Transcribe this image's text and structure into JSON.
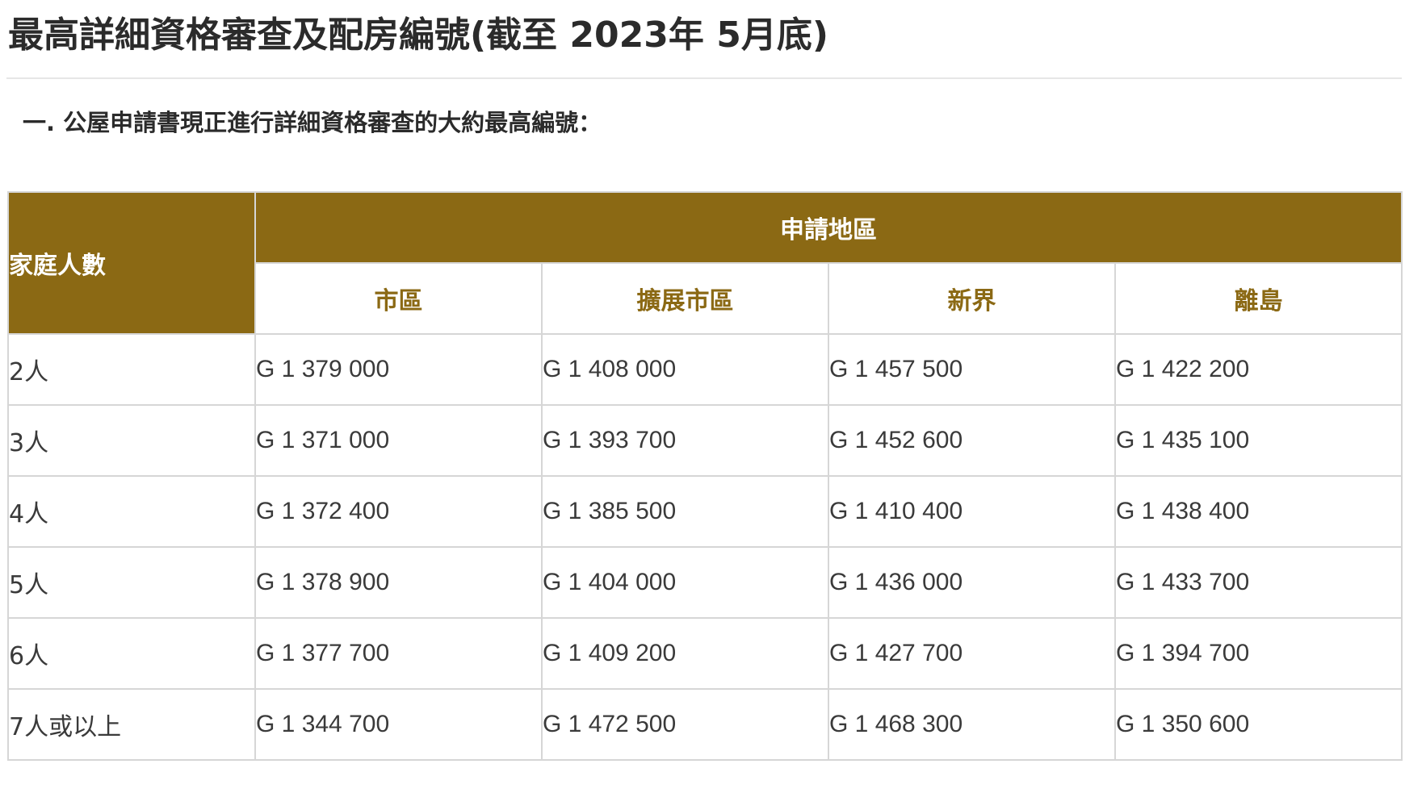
{
  "page": {
    "title": "最高詳細資格審查及配房編號(截至 2023年 5月底)",
    "section_heading": "一. 公屋申請書現正進行詳細資格審查的大約最高編號："
  },
  "table": {
    "row_header": "家庭人數",
    "group_header": "申請地區",
    "columns": [
      "市區",
      "擴展市區",
      "新界",
      "離島"
    ],
    "rows": [
      {
        "label": "2人",
        "values": [
          "G 1 379 000",
          "G 1 408 000",
          "G 1 457 500",
          "G 1 422 200"
        ]
      },
      {
        "label": "3人",
        "values": [
          "G 1 371 000",
          "G 1 393 700",
          "G 1 452 600",
          "G 1 435 100"
        ]
      },
      {
        "label": "4人",
        "values": [
          "G 1 372 400",
          "G 1 385 500",
          "G 1 410 400",
          "G 1 438 400"
        ]
      },
      {
        "label": "5人",
        "values": [
          "G 1 378 900",
          "G 1 404 000",
          "G 1 436 000",
          "G 1 433 700"
        ]
      },
      {
        "label": "6人",
        "values": [
          "G 1 377 700",
          "G 1 409 200",
          "G 1 427 700",
          "G 1 394 700"
        ]
      },
      {
        "label": "7人或以上",
        "values": [
          "G 1 344 700",
          "G 1 472 500",
          "G 1 468 300",
          "G 1 350 600"
        ]
      }
    ]
  },
  "colors": {
    "header_background": "#8b6914",
    "header_text": "#ffffff",
    "region_text": "#8b6914",
    "body_text": "#3a3a3a",
    "grid_line": "#d6d6d6"
  }
}
